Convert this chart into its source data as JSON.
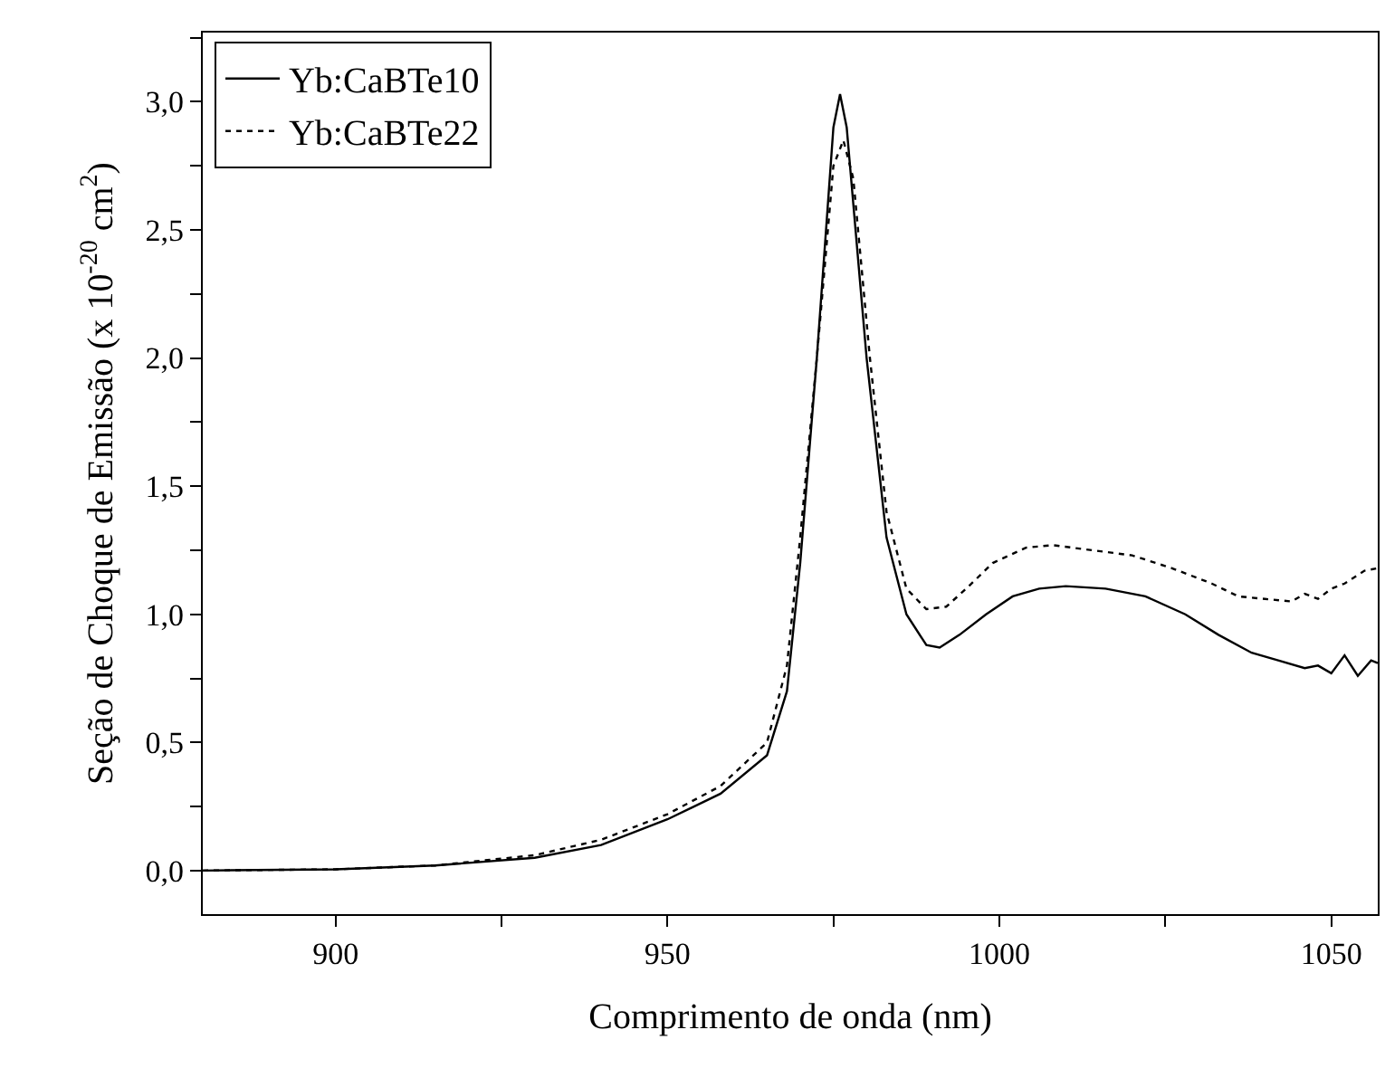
{
  "chart_data": {
    "type": "line",
    "xlabel": "Comprimento de onda (nm)",
    "ylabel": "Seção de Choque de Emissão (x 10$^{-20}$ cm$^{2}$)",
    "xlim": [
      880,
      1057
    ],
    "ylim": [
      -0.17,
      3.27
    ],
    "xticks": [
      900,
      {
        "value": 925,
        "label": null
      },
      950,
      {
        "value": 975,
        "label": null
      },
      1000,
      {
        "value": 1025,
        "label": null
      },
      1050
    ],
    "yticks": [
      {
        "value": 0,
        "label": "0,0"
      },
      {
        "value": 0.25,
        "label": null
      },
      {
        "value": 0.5,
        "label": "0,5"
      },
      {
        "value": 0.75,
        "label": null
      },
      {
        "value": 1.0,
        "label": "1,0"
      },
      {
        "value": 1.25,
        "label": null
      },
      {
        "value": 1.5,
        "label": "1,5"
      },
      {
        "value": 1.75,
        "label": null
      },
      {
        "value": 2.0,
        "label": "2,0"
      },
      {
        "value": 2.25,
        "label": null
      },
      {
        "value": 2.5,
        "label": "2,5"
      },
      {
        "value": 2.75,
        "label": null
      },
      {
        "value": 3.0,
        "label": "3,0"
      },
      {
        "value": 3.25,
        "label": null
      }
    ],
    "legend": "top left",
    "marker": "none",
    "series": [
      {
        "name": "Yb:CaBTe10",
        "color": "#000000",
        "line_style": "solid",
        "x": [
          880,
          900,
          915,
          930,
          940,
          950,
          958,
          965,
          968,
          970,
          972.5,
          975,
          976,
          977,
          980,
          983,
          986,
          989,
          991,
          994,
          998,
          1002,
          1006,
          1010,
          1016,
          1022,
          1028,
          1033,
          1038,
          1042,
          1046,
          1048,
          1050,
          1052,
          1054,
          1056,
          1057
        ],
        "values": [
          0,
          0.005,
          0.02,
          0.05,
          0.1,
          0.2,
          0.3,
          0.45,
          0.7,
          1.2,
          2.0,
          2.9,
          3.03,
          2.9,
          2.0,
          1.3,
          1.0,
          0.88,
          0.87,
          0.92,
          1.0,
          1.07,
          1.1,
          1.11,
          1.1,
          1.07,
          1.0,
          0.92,
          0.85,
          0.82,
          0.79,
          0.8,
          0.77,
          0.84,
          0.76,
          0.82,
          0.81
        ]
      },
      {
        "name": "Yb:CaBTe22",
        "color": "#000000",
        "line_style": "dotted",
        "x": [
          880,
          900,
          915,
          930,
          940,
          950,
          958,
          965,
          968,
          970,
          972.5,
          975,
          976.5,
          978,
          980.5,
          983,
          986,
          989,
          992,
          995,
          999,
          1004,
          1008,
          1014,
          1020,
          1026,
          1032,
          1036,
          1040,
          1044,
          1046,
          1048,
          1050,
          1052,
          1055,
          1057
        ],
        "values": [
          0,
          0.005,
          0.02,
          0.06,
          0.12,
          0.22,
          0.33,
          0.5,
          0.8,
          1.3,
          2.0,
          2.75,
          2.85,
          2.7,
          2.0,
          1.4,
          1.1,
          1.02,
          1.03,
          1.1,
          1.2,
          1.26,
          1.27,
          1.25,
          1.23,
          1.18,
          1.12,
          1.07,
          1.06,
          1.05,
          1.08,
          1.06,
          1.1,
          1.12,
          1.17,
          1.18
        ]
      }
    ]
  }
}
